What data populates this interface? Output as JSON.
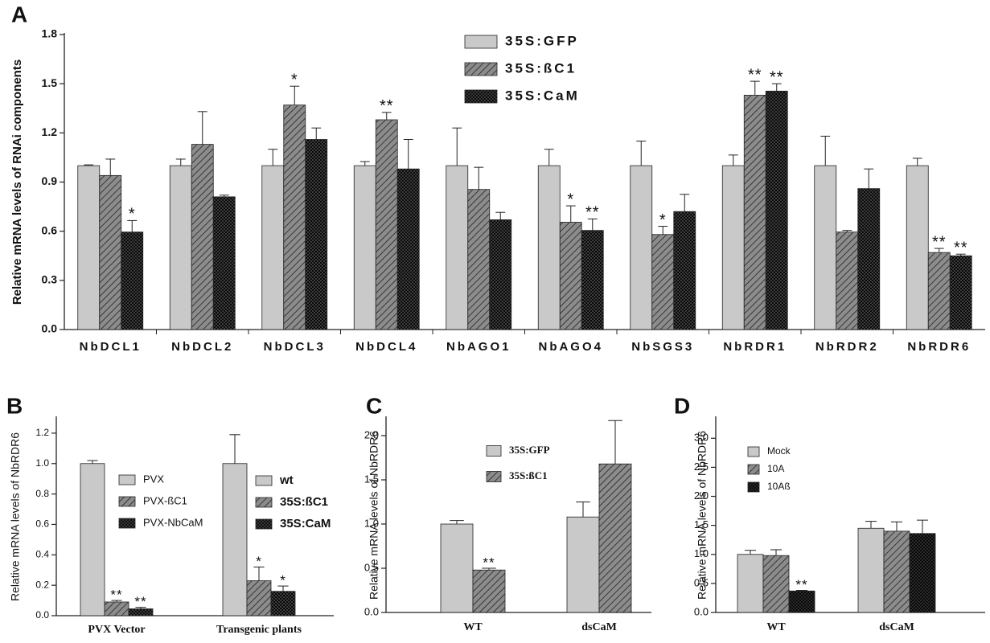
{
  "chart_data": [
    {
      "type": "bar",
      "panel": "A",
      "ylabel": "Relative mRNA levels of RNAi components",
      "categories": [
        "NbDCL1",
        "NbDCL2",
        "NbDCL3",
        "NbDCL4",
        "NbAGO1",
        "NbAGO4",
        "NbSGS3",
        "NbRDR1",
        "NbRDR2",
        "NbRDR6"
      ],
      "series": [
        {
          "name": "35S:GFP",
          "color": "#c9c9c9",
          "pattern": "none",
          "values": [
            1.0,
            1.0,
            1.0,
            1.0,
            1.0,
            1.0,
            1.0,
            1.0,
            1.0,
            1.0
          ],
          "errors": [
            0.005,
            0.04,
            0.1,
            0.025,
            0.23,
            0.1,
            0.15,
            0.065,
            0.18,
            0.045
          ],
          "significance": [
            null,
            null,
            null,
            null,
            null,
            null,
            null,
            null,
            null,
            null
          ]
        },
        {
          "name": "35S:ßC1",
          "color": "#8c8c8c",
          "pattern": "hatch",
          "values": [
            0.94,
            1.13,
            1.37,
            1.28,
            0.855,
            0.655,
            0.58,
            1.43,
            0.595,
            0.47
          ],
          "errors": [
            0.1,
            0.2,
            0.115,
            0.045,
            0.135,
            0.1,
            0.05,
            0.085,
            0.01,
            0.025
          ],
          "significance": [
            null,
            null,
            "*",
            "**",
            null,
            "*",
            "*",
            "**",
            null,
            "**"
          ]
        },
        {
          "name": "35S:CaM",
          "color": "#3c3c3c",
          "pattern": "cross",
          "values": [
            0.595,
            0.81,
            1.16,
            0.98,
            0.67,
            0.605,
            0.72,
            1.455,
            0.86,
            0.45
          ],
          "errors": [
            0.07,
            0.01,
            0.07,
            0.18,
            0.045,
            0.07,
            0.105,
            0.045,
            0.12,
            0.01
          ],
          "significance": [
            "*",
            null,
            null,
            null,
            null,
            "**",
            null,
            "**",
            null,
            "**"
          ]
        }
      ],
      "ylim": [
        0,
        1.8
      ],
      "yticks": [
        {
          "value": 0,
          "label": "0.0"
        },
        0.3,
        0.6,
        0.9,
        1.2,
        1.5,
        1.8
      ]
    },
    {
      "type": "bar",
      "panel": "B",
      "ylabel": "Relative mRNA levels of NbRDR6",
      "categories": [
        "PVX  Vector",
        "Transgenic plants"
      ],
      "series": [
        {
          "name": "PVX",
          "color": "#c9c9c9",
          "pattern": "none",
          "values": [
            1.0,
            null
          ],
          "errors": [
            0.02,
            null
          ],
          "significance": [
            null,
            null
          ]
        },
        {
          "name": "PVX-ßC1",
          "color": "#8c8c8c",
          "pattern": "hatch",
          "values": [
            0.09,
            null
          ],
          "errors": [
            0.01,
            null
          ],
          "significance": [
            "**",
            null
          ]
        },
        {
          "name": "PVX-NbCaM",
          "color": "#3c3c3c",
          "pattern": "cross",
          "values": [
            0.045,
            null
          ],
          "errors": [
            0.01,
            null
          ],
          "significance": [
            "**",
            null
          ]
        },
        {
          "name": "wt",
          "color": "#c9c9c9",
          "pattern": "none",
          "values": [
            null,
            1.0
          ],
          "errors": [
            null,
            0.19
          ],
          "significance": [
            null,
            null
          ]
        },
        {
          "name": "35S:ßC1",
          "color": "#8c8c8c",
          "pattern": "hatch",
          "values": [
            null,
            0.23
          ],
          "errors": [
            null,
            0.09
          ],
          "significance": [
            null,
            "*"
          ]
        },
        {
          "name": "35S:CaM",
          "color": "#3c3c3c",
          "pattern": "cross",
          "values": [
            null,
            0.16
          ],
          "errors": [
            null,
            0.035
          ],
          "significance": [
            null,
            "*"
          ]
        }
      ],
      "ylim": [
        0,
        1.3
      ],
      "yticks": [
        {
          "value": 0,
          "label": "0.0"
        },
        0.2,
        0.4,
        0.6,
        0.8,
        {
          "value": 1,
          "label": "1.0"
        },
        1.2
      ]
    },
    {
      "type": "bar",
      "panel": "C",
      "ylabel": "Relative mRNA levels of NbRDR6",
      "categories": [
        "WT",
        "dsCaM"
      ],
      "series": [
        {
          "name": "35S:GFP",
          "color": "#c9c9c9",
          "pattern": "none",
          "values": [
            1.0,
            1.08
          ],
          "errors": [
            0.04,
            0.17
          ],
          "significance": [
            null,
            null
          ]
        },
        {
          "name": "35S:ßC1",
          "color": "#8c8c8c",
          "pattern": "hatch",
          "values": [
            0.48,
            1.68
          ],
          "errors": [
            0.02,
            0.49
          ],
          "significance": [
            "**",
            null
          ]
        }
      ],
      "ylim": [
        0,
        2.2
      ],
      "yticks": [
        {
          "value": 0,
          "label": "0.0"
        },
        0.5,
        {
          "value": 1,
          "label": "1.0"
        },
        1.5,
        {
          "value": 2,
          "label": "2.0"
        }
      ]
    },
    {
      "type": "bar",
      "panel": "D",
      "ylabel": "Relative mRNA levels of NbRDR6",
      "categories": [
        "WT",
        "dsCaM"
      ],
      "series": [
        {
          "name": "Mock",
          "color": "#c9c9c9",
          "pattern": "none",
          "values": [
            1.0,
            1.45
          ],
          "errors": [
            0.07,
            0.12
          ],
          "significance": [
            null,
            null
          ]
        },
        {
          "name": "10A",
          "color": "#8c8c8c",
          "pattern": "hatch",
          "values": [
            0.98,
            1.4
          ],
          "errors": [
            0.1,
            0.16
          ],
          "significance": [
            null,
            null
          ]
        },
        {
          "name": "10Aß",
          "color": "#2a2a2a",
          "pattern": "cross",
          "values": [
            0.37,
            1.36
          ],
          "errors": [
            0.01,
            0.23
          ],
          "significance": [
            "**",
            null
          ]
        }
      ],
      "ylim": [
        0,
        3.35
      ],
      "yticks": [
        {
          "value": 0,
          "label": "0.0"
        },
        0.5,
        {
          "value": 1,
          "label": "1.0"
        },
        1.5,
        {
          "value": 2,
          "label": "2.0"
        },
        2.5,
        {
          "value": 3,
          "label": "3.0"
        }
      ]
    }
  ]
}
